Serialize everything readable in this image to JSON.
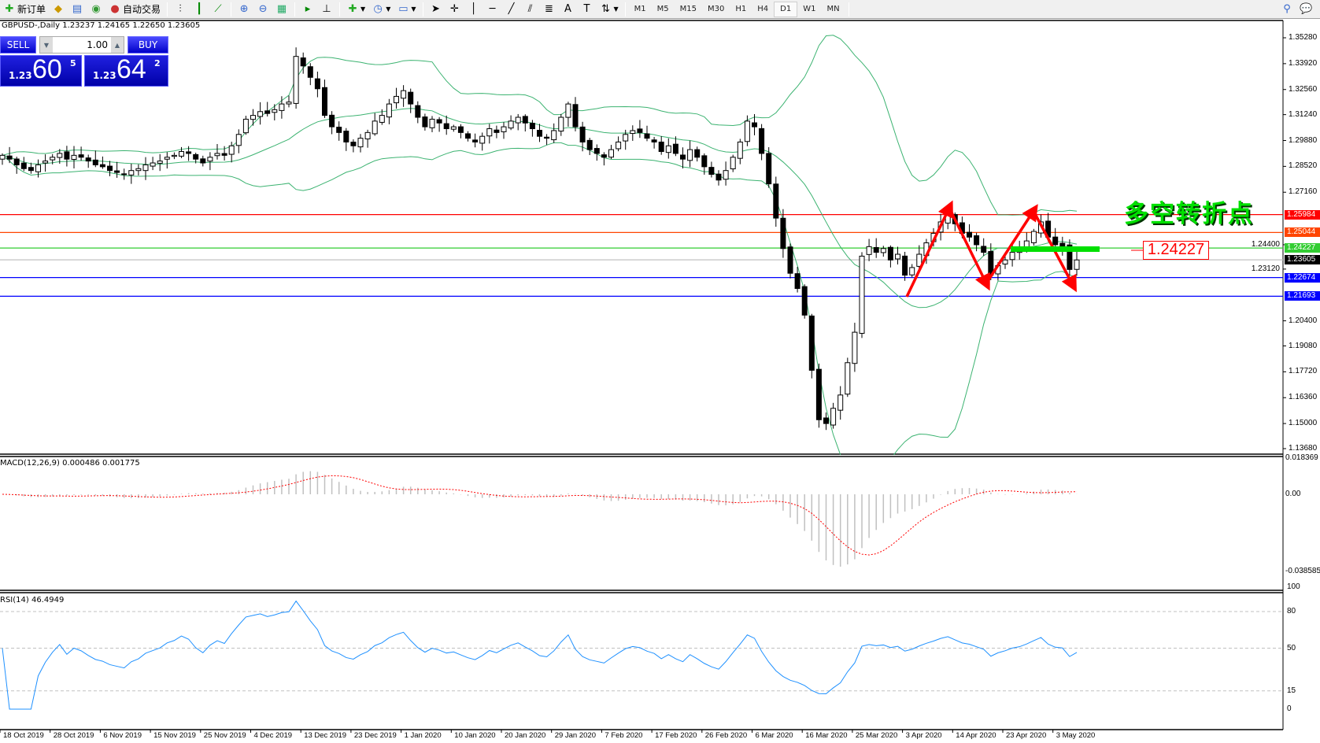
{
  "toolbar": {
    "new_order": "新订单",
    "auto_trading": "自动交易",
    "timeframes": [
      "M1",
      "M5",
      "M15",
      "M30",
      "H1",
      "H4",
      "D1",
      "W1",
      "MN"
    ],
    "active_timeframe": "D1"
  },
  "chart": {
    "title": "GBPUSD-,Daily  1.23237 1.24165 1.22650 1.23605",
    "annotation_text": "多空转折点",
    "annotation_price": "1.24227",
    "price_ticks": [
      "1.35280",
      "1.33920",
      "1.32560",
      "1.31240",
      "1.29880",
      "1.28520",
      "1.27160",
      "1.24400",
      "1.23120",
      "1.20400",
      "1.19080",
      "1.17720",
      "1.16360",
      "1.15000",
      "1.13680"
    ],
    "levels": [
      {
        "price": "1.25984",
        "color": "#ff0000"
      },
      {
        "price": "1.25044",
        "color": "#ff4500"
      },
      {
        "price": "1.24227",
        "color": "#32cd32"
      },
      {
        "price": "1.23605",
        "color": "#000000",
        "line": "#c0c0c0"
      },
      {
        "price": "1.22674",
        "color": "#0000ff"
      },
      {
        "price": "1.21693",
        "color": "#0000ff"
      }
    ],
    "bands_color": "#3cb371",
    "daily_closes": [
      1.291,
      1.289,
      1.286,
      1.284,
      1.283,
      1.286,
      1.288,
      1.29,
      1.292,
      1.289,
      1.291,
      1.29,
      1.288,
      1.286,
      1.285,
      1.283,
      1.282,
      1.281,
      1.283,
      1.284,
      1.286,
      1.287,
      1.288,
      1.29,
      1.291,
      1.293,
      1.292,
      1.289,
      1.287,
      1.29,
      1.292,
      1.291,
      1.296,
      1.302,
      1.31,
      1.312,
      1.314,
      1.313,
      1.315,
      1.318,
      1.319,
      1.343,
      1.338,
      1.332,
      1.326,
      1.312,
      1.306,
      1.303,
      1.298,
      1.296,
      1.3,
      1.303,
      1.309,
      1.312,
      1.318,
      1.322,
      1.325,
      1.318,
      1.311,
      1.306,
      1.31,
      1.308,
      1.305,
      1.306,
      1.303,
      1.3,
      1.298,
      1.301,
      1.305,
      1.303,
      1.306,
      1.309,
      1.311,
      1.308,
      1.305,
      1.301,
      1.3,
      1.304,
      1.311,
      1.318,
      1.306,
      1.298,
      1.294,
      1.292,
      1.29,
      1.294,
      1.298,
      1.302,
      1.304,
      1.303,
      1.3,
      1.298,
      1.293,
      1.296,
      1.292,
      1.289,
      1.294,
      1.29,
      1.285,
      1.281,
      1.278,
      1.283,
      1.29,
      1.298,
      1.309,
      1.306,
      1.292,
      1.276,
      1.258,
      1.242,
      1.229,
      1.221,
      1.207,
      1.178,
      1.152,
      1.15,
      1.158,
      1.165,
      1.182,
      1.198,
      1.238,
      1.243,
      1.24,
      1.242,
      1.236,
      1.239,
      1.228,
      1.232,
      1.239,
      1.245,
      1.25,
      1.256,
      1.26,
      1.255,
      1.25,
      1.248,
      1.244,
      1.24,
      1.228,
      1.233,
      1.236,
      1.24,
      1.242,
      1.246,
      1.251,
      1.256,
      1.248,
      1.244,
      1.243,
      1.231,
      1.236
    ]
  },
  "trade_panel": {
    "sell_label": "SELL",
    "buy_label": "BUY",
    "lot": "1.00",
    "sell_prefix": "1.23",
    "sell_big": "60",
    "sell_sup": "5",
    "buy_prefix": "1.23",
    "buy_big": "64",
    "buy_sup": "2"
  },
  "macd": {
    "title": "MACD(12,26,9) 0.000486 0.001775",
    "ticks": [
      "0.018369",
      "0.00",
      "-0.038585"
    ]
  },
  "rsi": {
    "title": "RSI(14) 46.4949",
    "ticks": [
      "100",
      "80",
      "50",
      "15",
      "0"
    ],
    "line_color": "#1e90ff"
  },
  "time_axis": [
    "18 Oct 2019",
    "28 Oct 2019",
    "6 Nov 2019",
    "15 Nov 2019",
    "25 Nov 2019",
    "4 Dec 2019",
    "13 Dec 2019",
    "23 Dec 2019",
    "1 Jan 2020",
    "10 Jan 2020",
    "20 Jan 2020",
    "29 Jan 2020",
    "7 Feb 2020",
    "17 Feb 2020",
    "26 Feb 2020",
    "6 Mar 2020",
    "16 Mar 2020",
    "25 Mar 2020",
    "3 Apr 2020",
    "14 Apr 2020",
    "23 Apr 2020",
    "3 May 2020"
  ]
}
